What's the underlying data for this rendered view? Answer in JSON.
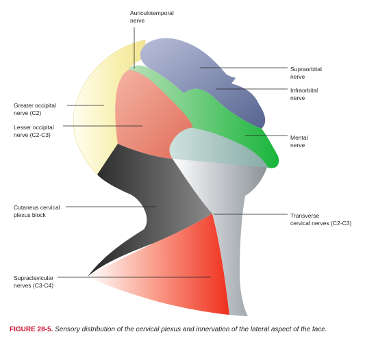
{
  "labels": {
    "auriculotemporal": {
      "line1": "Auriculotemporal",
      "line2": "nerve"
    },
    "supraorbital": {
      "line1": "Supraorbital",
      "line2": "nerve"
    },
    "infraorbital": {
      "line1": "Infraorbital",
      "line2": "nerve"
    },
    "mental": {
      "line1": "Mental",
      "line2": "nerve"
    },
    "greater_occipital": {
      "line1": "Greater occipital",
      "line2": "nerve (C2)"
    },
    "lesser_occipital": {
      "line1": "Lesser occipital",
      "line2": "nerve (C2-C3)"
    },
    "cutaneous_cervical": {
      "line1": "Cutaneus cervical",
      "line2": "plexus block"
    },
    "transverse_cervical": {
      "line1": "Transverse",
      "line2": "cervical nerves (C2-C3)"
    },
    "supraclavicular": {
      "line1": "Supraclavicular",
      "line2": "nerves (C3-C4)"
    }
  },
  "caption": {
    "figure_number": "FIGURE 28-5.",
    "text": "Sensory distribution of the cervical plexus and innervation of the lateral aspect of the face."
  },
  "colors": {
    "supraorbital": "#8791b8",
    "infraorbital_mental": "#2fb34a",
    "mental_inner": "#a9c9c4",
    "lesser_occipital": "#e8907f",
    "greater_occipital": "#f6eeac",
    "cutaneous_cervical": "#3a3a3a",
    "transverse_cervical": "#9aa0a4",
    "supraclavicular": "#f04a3a",
    "caption_red": "#c8102e"
  }
}
